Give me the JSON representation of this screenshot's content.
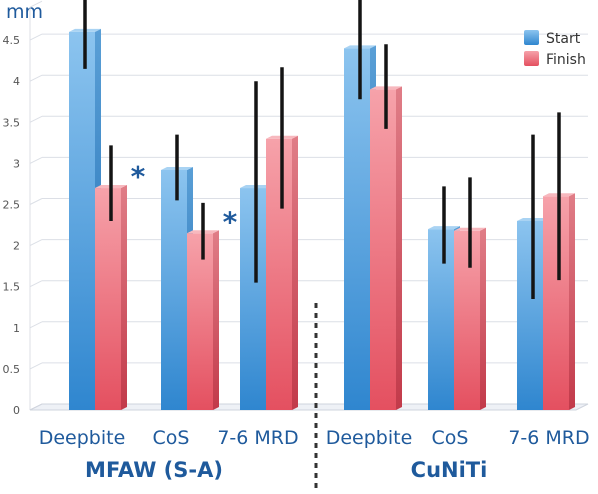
{
  "chart_data": {
    "type": "bar",
    "ylabel": "mm",
    "ylim": [
      0,
      4.9
    ],
    "yticks": [
      "0",
      "0.5",
      "1",
      "1.5",
      "2",
      "2.5",
      "3",
      "3.5",
      "4",
      "4.5"
    ],
    "grid": true,
    "legend_position": "top-right",
    "categories": [
      "Deepbite",
      "CoS",
      "7-6 MRD",
      "Deepbite",
      "CoS",
      "7-6 MRD"
    ],
    "groups": [
      {
        "label": "MFAW (S-A)",
        "categories": [
          "Deepbite",
          "CoS",
          "7-6 MRD"
        ]
      },
      {
        "label": "CuNiTi",
        "categories": [
          "Deepbite",
          "CoS",
          "7-6 MRD"
        ]
      }
    ],
    "series": [
      {
        "name": "Start",
        "color": "#4a9bd8",
        "values": [
          4.6,
          2.92,
          2.7,
          4.4,
          2.2,
          2.3
        ],
        "error_low": [
          4.15,
          2.55,
          1.55,
          3.78,
          1.78,
          1.35
        ],
        "error_high": [
          5.0,
          3.35,
          4.0,
          5.0,
          2.72,
          3.35
        ]
      },
      {
        "name": "Finish",
        "color": "#e8737e",
        "values": [
          2.7,
          2.15,
          3.3,
          3.9,
          2.18,
          2.6
        ],
        "error_low": [
          2.3,
          1.83,
          2.45,
          3.42,
          1.73,
          1.58
        ],
        "error_high": [
          3.22,
          2.52,
          4.17,
          4.45,
          2.83,
          3.62
        ]
      }
    ],
    "annotations": [
      {
        "text": "*",
        "series": "Finish",
        "category_index": 0
      },
      {
        "text": "*",
        "series": "Finish",
        "category_index": 1
      }
    ]
  },
  "colors": {
    "accent_text": "#1f5a9c",
    "axis_text": "#555555",
    "grid": "#dcdfe6"
  }
}
